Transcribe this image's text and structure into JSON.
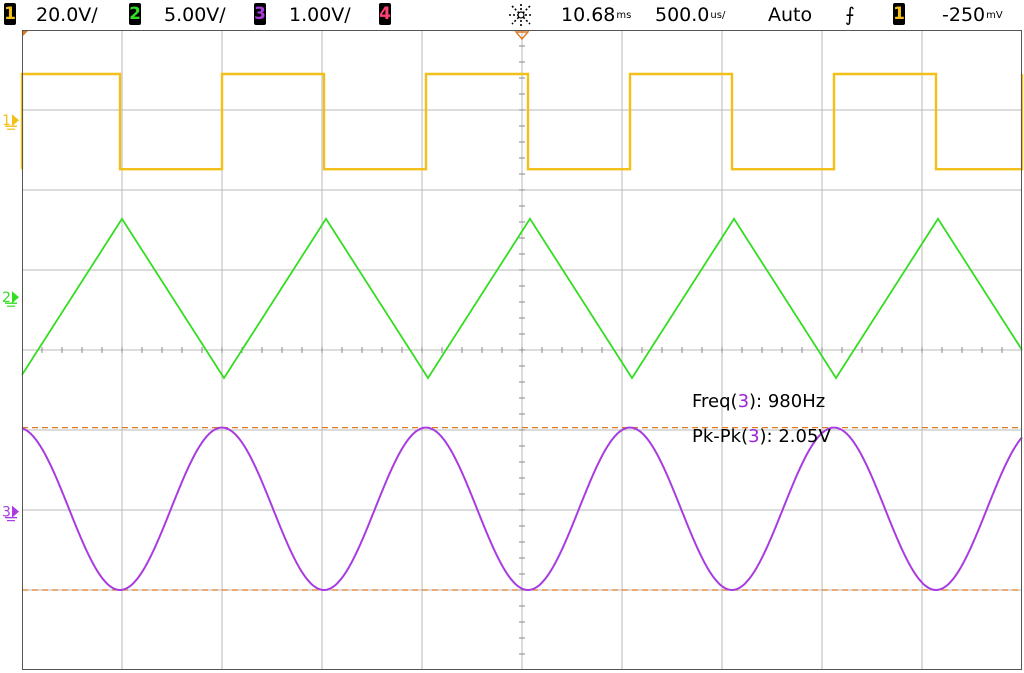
{
  "topbar": {
    "channels": [
      {
        "num": "1",
        "scale": "20.0V/",
        "color": "#f2c018"
      },
      {
        "num": "2",
        "scale": "5.00V/",
        "color": "#33dd22"
      },
      {
        "num": "3",
        "scale": "1.00V/",
        "color": "#a83ce0"
      },
      {
        "num": "4",
        "scale": "",
        "color": "#ff4070"
      }
    ],
    "delay_value": "10.68",
    "delay_unit": "ms",
    "timebase_value": "500.0",
    "timebase_unit": "us/",
    "trigger_mode": "Auto",
    "trigger_slope_symbol": "⨍",
    "trigger_source": "1",
    "trigger_level_value": "-250",
    "trigger_level_unit": "mV"
  },
  "markers": {
    "ch1": "1",
    "ch2": "2",
    "ch3": "3"
  },
  "measurements": {
    "freq_label": "Freq(",
    "freq_channel": "3",
    "freq_suffix": "):",
    "freq_value": "980Hz",
    "pkpk_label": "Pk-Pk(",
    "pkpk_channel": "3",
    "pkpk_suffix": "):",
    "pkpk_value": "2.05V"
  },
  "colors": {
    "ch1": "#f2c018",
    "ch2": "#33dd22",
    "ch3": "#a83ce0",
    "cursor": "#e07a20",
    "grid": "#b8b8b8"
  },
  "chart_data": {
    "type": "line",
    "x_units": "divisions",
    "y_units": "divisions",
    "xlim": [
      -5,
      5
    ],
    "ylim": [
      -4,
      4
    ],
    "series": [
      {
        "name": "1",
        "waveform": "square",
        "period_div": 2.04,
        "high_div": 3.45,
        "low_div": 2.26,
        "first_rising_edge_div": -3.0,
        "phase_offset_div": -4.0,
        "duty": 0.5
      },
      {
        "name": "2",
        "waveform": "triangle",
        "period_div": 2.04,
        "peak_div": 1.64,
        "trough_div": -0.35,
        "first_peak_div": -4.0
      },
      {
        "name": "3",
        "waveform": "sine",
        "period_div": 2.04,
        "max_div": -0.97,
        "min_div": -3.0,
        "first_max_div": -3.0
      }
    ],
    "cursors_y_div": [
      -0.97,
      -3.0
    ]
  }
}
